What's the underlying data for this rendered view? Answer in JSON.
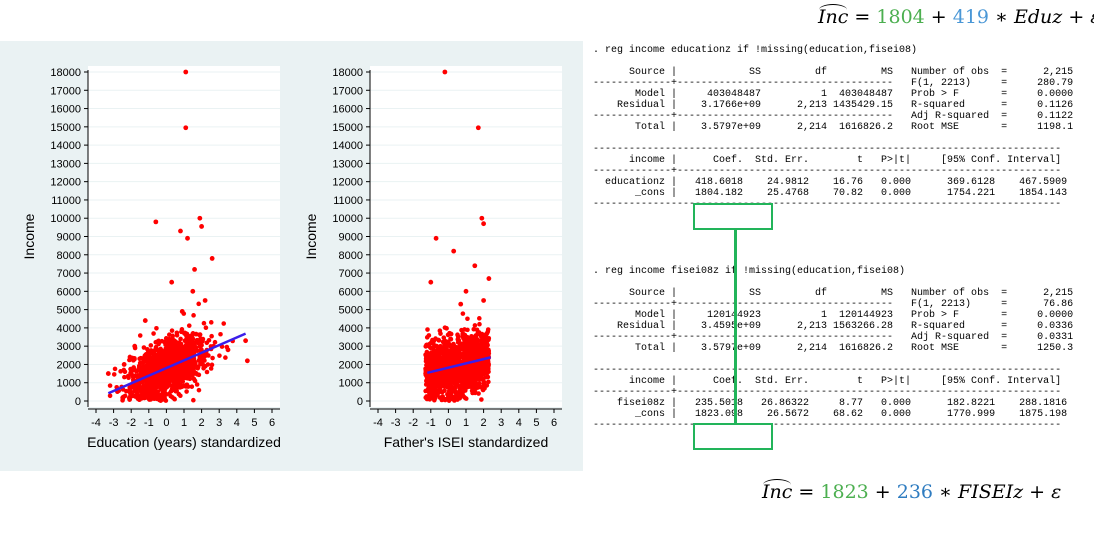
{
  "chart_data": [
    {
      "type": "scatter",
      "title": "",
      "xlabel": "Education (years) standardized",
      "ylabel": "Income",
      "xlim": [
        -4,
        6
      ],
      "ylim": [
        0,
        18000
      ],
      "x_ticks": [
        "-4",
        "-3",
        "-2",
        "-1",
        "0",
        "1",
        "2",
        "3",
        "4",
        "5",
        "6"
      ],
      "y_ticks": [
        "0",
        "1000",
        "2000",
        "3000",
        "4000",
        "5000",
        "6000",
        "7000",
        "8000",
        "9000",
        "10000",
        "11000",
        "12000",
        "13000",
        "14000",
        "15000",
        "16000",
        "17000",
        "18000"
      ],
      "marker_color": "#ff0000",
      "fit_line": {
        "color": "#3b1eea",
        "x": [
          -3.3,
          4.5
        ],
        "y": [
          422,
          3688
        ]
      },
      "points": [
        [
          1.1,
          18000
        ],
        [
          1.1,
          14950
        ],
        [
          -0.6,
          9800
        ],
        [
          1.9,
          10000
        ],
        [
          2.0,
          9550
        ],
        [
          0.8,
          9300
        ],
        [
          1.2,
          8900
        ],
        [
          2.6,
          7800
        ],
        [
          1.6,
          7200
        ],
        [
          4.5,
          3300
        ],
        [
          4.6,
          2200
        ],
        [
          3.5,
          2800
        ],
        [
          -3.3,
          1500
        ],
        [
          -2.4,
          2000
        ],
        [
          -1.8,
          3000
        ],
        [
          0.3,
          6500
        ],
        [
          1.5,
          6000
        ],
        [
          2.2,
          5500
        ],
        [
          0.9,
          4900
        ],
        [
          -1.2,
          4400
        ]
      ]
    },
    {
      "type": "scatter",
      "title": "",
      "xlabel": "Father's ISEI standardized",
      "ylabel": "Income",
      "xlim": [
        -4,
        6
      ],
      "ylim": [
        0,
        18000
      ],
      "x_ticks": [
        "-4",
        "-3",
        "-2",
        "-1",
        "0",
        "1",
        "2",
        "3",
        "4",
        "5",
        "6"
      ],
      "y_ticks": [
        "0",
        "1000",
        "2000",
        "3000",
        "4000",
        "5000",
        "6000",
        "7000",
        "8000",
        "9000",
        "10000",
        "11000",
        "12000",
        "13000",
        "14000",
        "15000",
        "16000",
        "17000",
        "18000"
      ],
      "marker_color": "#ff0000",
      "fit_line": {
        "color": "#3b1eea",
        "x": [
          -1.2,
          2.4
        ],
        "y": [
          1541,
          2388
        ]
      },
      "points": [
        [
          -0.2,
          18000
        ],
        [
          1.7,
          14950
        ],
        [
          1.9,
          10000
        ],
        [
          2.0,
          9700
        ],
        [
          -0.7,
          8900
        ],
        [
          0.3,
          8200
        ],
        [
          1.5,
          7400
        ],
        [
          2.3,
          6700
        ],
        [
          -1.0,
          6500
        ],
        [
          1.0,
          6000
        ],
        [
          2.0,
          5500
        ],
        [
          0.7,
          5300
        ]
      ]
    }
  ],
  "regressions": [
    {
      "command": ". reg income educationz if !missing(education,fisei08)",
      "anova_header": [
        "Source",
        "SS",
        "df",
        "MS"
      ],
      "anova_rows": [
        [
          "Model",
          "403048487",
          "1",
          "403048487"
        ],
        [
          "Residual",
          "3.1766e+09",
          "2,213",
          "1435429.15"
        ],
        [
          "Total",
          "3.5797e+09",
          "2,214",
          "1616826.2"
        ]
      ],
      "stats": [
        [
          "Number of obs",
          "=",
          "2,215"
        ],
        [
          "F(1, 2213)",
          "=",
          "280.79"
        ],
        [
          "Prob > F",
          "=",
          "0.0000"
        ],
        [
          "R-squared",
          "=",
          "0.1126"
        ],
        [
          "Adj R-squared",
          "=",
          "0.1122"
        ],
        [
          "Root MSE",
          "=",
          "1198.1"
        ]
      ],
      "coef_header": [
        "income",
        "Coef.",
        "Std. Err.",
        "t",
        "P>|t|",
        "[95% Conf. Interval]"
      ],
      "coef_rows": [
        [
          "educationz",
          "418.6018",
          "24.9812",
          "16.76",
          "0.000",
          "369.6128",
          "467.5909"
        ],
        [
          "_cons",
          "1804.182",
          "25.4768",
          "70.82",
          "0.000",
          "1754.221",
          "1854.143"
        ]
      ]
    },
    {
      "command": ". reg income fisei08z if !missing(education,fisei08)",
      "anova_header": [
        "Source",
        "SS",
        "df",
        "MS"
      ],
      "anova_rows": [
        [
          "Model",
          "120144923",
          "1",
          "120144923"
        ],
        [
          "Residual",
          "3.4595e+09",
          "2,213",
          "1563266.28"
        ],
        [
          "Total",
          "3.5797e+09",
          "2,214",
          "1616826.2"
        ]
      ],
      "stats": [
        [
          "Number of obs",
          "=",
          "2,215"
        ],
        [
          "F(1, 2213)",
          "=",
          "76.86"
        ],
        [
          "Prob > F",
          "=",
          "0.0000"
        ],
        [
          "R-squared",
          "=",
          "0.0336"
        ],
        [
          "Adj R-squared",
          "=",
          "0.0331"
        ],
        [
          "Root MSE",
          "=",
          "1250.3"
        ]
      ],
      "coef_header": [
        "income",
        "Coef.",
        "Std. Err.",
        "t",
        "P>|t|",
        "[95% Conf. Interval]"
      ],
      "coef_rows": [
        [
          "fisei08z",
          "235.5018",
          "26.86322",
          "8.77",
          "0.000",
          "182.8221",
          "288.1816"
        ],
        [
          "_cons",
          "1823.098",
          "26.5672",
          "68.62",
          "0.000",
          "1770.999",
          "1875.198"
        ]
      ]
    }
  ],
  "equations": [
    {
      "lhs": "Inc",
      "eq": " = ",
      "intercept": "1804",
      "plus": " + ",
      "slope": "419",
      "times": " ∗ ",
      "var": "Eduz",
      "tail": " + ε"
    },
    {
      "lhs": "Inc",
      "eq": " = ",
      "intercept": "1823",
      "plus": " + ",
      "slope": "236",
      "times": " ∗ ",
      "var": "FISEIz",
      "tail": " + ε"
    }
  ],
  "colors": {
    "highlight_box": "#22b45a",
    "intercept_text": "#4caf50",
    "slope_text": "#4a97d6"
  }
}
